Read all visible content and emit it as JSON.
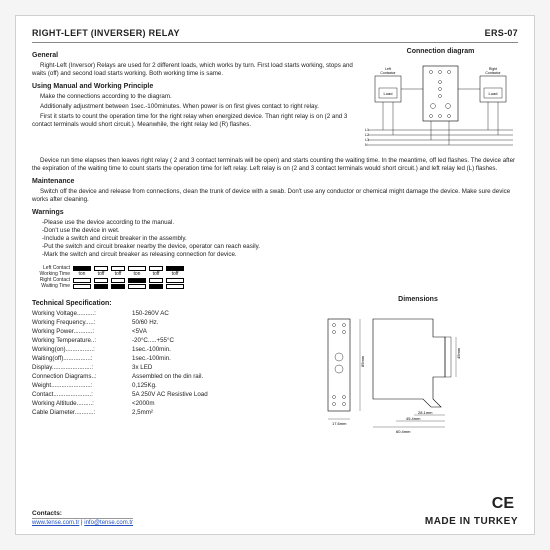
{
  "header": {
    "title": "RIGHT-LEFT (INVERSER) RELAY",
    "model": "ERS-07"
  },
  "sections": {
    "general_h": "General",
    "general_p": "Right-Left (Inversor) Relays are used for 2 different loads, which works by turn. First load starts working, stops and waits (off) and second load starts working. Both working time is same.",
    "using_h": "Using Manual and Working Principle",
    "using_p1": "Make the connections according to the diagram.",
    "using_p2": "Additionally adjustment between 1sec.-100minutes. When power is on first gives contact to right relay.",
    "using_p3": "First it starts to count the operation time for the right relay when energized device. Than right relay is on (2 and 3 contact terminals would short circuit.). Meanwhile, the right relay led (R) flashes.",
    "using_p4": "Device run time elapses then leaves right relay ( 2 and 3 contact terminals will be open) and starts counting the waiting time. In the meantime, off led flashes. The device after the expiration of the waiting time to count starts the operation time for left relay. Left relay is on (2 and 3 contact terminals would short circuit.) and left relay led (L) flashes.",
    "maint_h": "Maintenance",
    "maint_p": "Switch off the device and release from connections, clean the trunk of device with a swab. Don't use any conductor or chemical might damage the device. Make sure device works after cleaning.",
    "warn_h": "Warnings",
    "warn1": "-Please use the device according to the manual.",
    "warn2": "-Don't use the device in wet.",
    "warn3": "-Include a switch and circuit breaker in the assembly.",
    "warn4": "-Put the switch and circuit breaker nearby the device, operator can reach easily.",
    "warn5": "-Mark the switch and circuit breaker as releasing connection for device."
  },
  "conn": {
    "title": "Connection diagram",
    "left_label": "Left Contactor",
    "right_label": "Right Contactor",
    "load": "Load",
    "wires": [
      "L1",
      "L2",
      "L3",
      "N"
    ]
  },
  "timing": {
    "labels": [
      "Left Contact",
      "Working Time",
      "Right Contact",
      "Waiting Time"
    ],
    "seg_labels": [
      "toff",
      "ton",
      "toff",
      "toff",
      "ton",
      "toff"
    ]
  },
  "specs": {
    "title": "Technical Specification:",
    "rows": [
      [
        "Working Voltage..........:",
        "150-260V AC"
      ],
      [
        "Working Frequency.....:",
        "50/60 Hz."
      ],
      [
        "Working Power...........:",
        "<5VA"
      ],
      [
        "Working Temperature..:",
        "-20°C.....+55°C"
      ],
      [
        "Working(on)................:",
        "1sec.-100min."
      ],
      [
        "Waiting(off)................:",
        "1sec.-100min."
      ],
      [
        "Display.......................:",
        "3x LED"
      ],
      [
        "Connection Diagrams..:",
        "Assembled on the din rail."
      ],
      [
        "Weight.......................:",
        "0,125Kg."
      ],
      [
        "Contact......................:",
        "5A 250V AC Resistive Load"
      ],
      [
        "Working Altitude.........:",
        "<2000m"
      ],
      [
        "Cable Diameter...........:",
        "2,5mm²"
      ]
    ]
  },
  "dims": {
    "title": "Dimensions",
    "h1": "85mm",
    "h2": "45mm",
    "w1": "17.6mm",
    "w2": "28.1mm",
    "w3": "45.4mm",
    "w4": "60.4mm"
  },
  "footer": {
    "contacts_h": "Contacts:",
    "url": "www.tense.com.tr",
    "sep": " | ",
    "email": "info@tense.com.tr",
    "made": "MADE IN TURKEY",
    "ce": "CE"
  },
  "style": {
    "text_color": "#222222",
    "border_color": "#888888",
    "link_color": "#2050c0",
    "bg": "#ffffff"
  }
}
